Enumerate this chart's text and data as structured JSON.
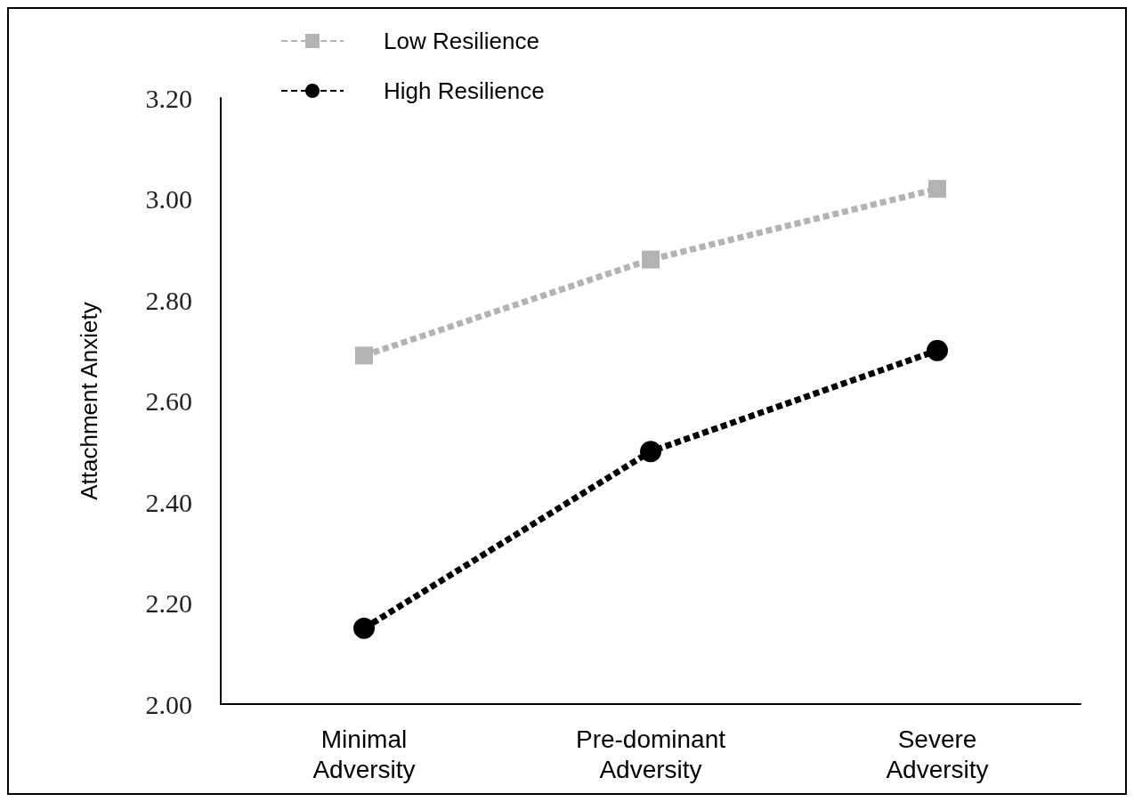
{
  "chart_data": {
    "type": "line",
    "ylabel": "Attachment Anxiety",
    "categories": [
      "Minimal\nAdversity",
      "Pre-dominant\nAdversity",
      "Severe\nAdversity"
    ],
    "series": [
      {
        "name": "Low Resilience",
        "color": "#b3b3b3",
        "values": [
          2.69,
          2.88,
          3.02
        ],
        "marker": "square",
        "line_style": "dashed"
      },
      {
        "name": "High Resilience",
        "color": "#000000",
        "values": [
          2.15,
          2.5,
          2.7
        ],
        "marker": "circle",
        "line_style": "dashed"
      }
    ],
    "ylim": [
      2.0,
      3.2
    ],
    "yticks": [
      {
        "value": 2.0,
        "label": "2.00"
      },
      {
        "value": 2.2,
        "label": "2.20"
      },
      {
        "value": 2.4,
        "label": "2.40"
      },
      {
        "value": 2.6,
        "label": "2.60"
      },
      {
        "value": 2.8,
        "label": "2.80"
      },
      {
        "value": 3.0,
        "label": "3.00"
      },
      {
        "value": 3.2,
        "label": "3.20"
      }
    ],
    "grid": false,
    "legend": "top left"
  }
}
